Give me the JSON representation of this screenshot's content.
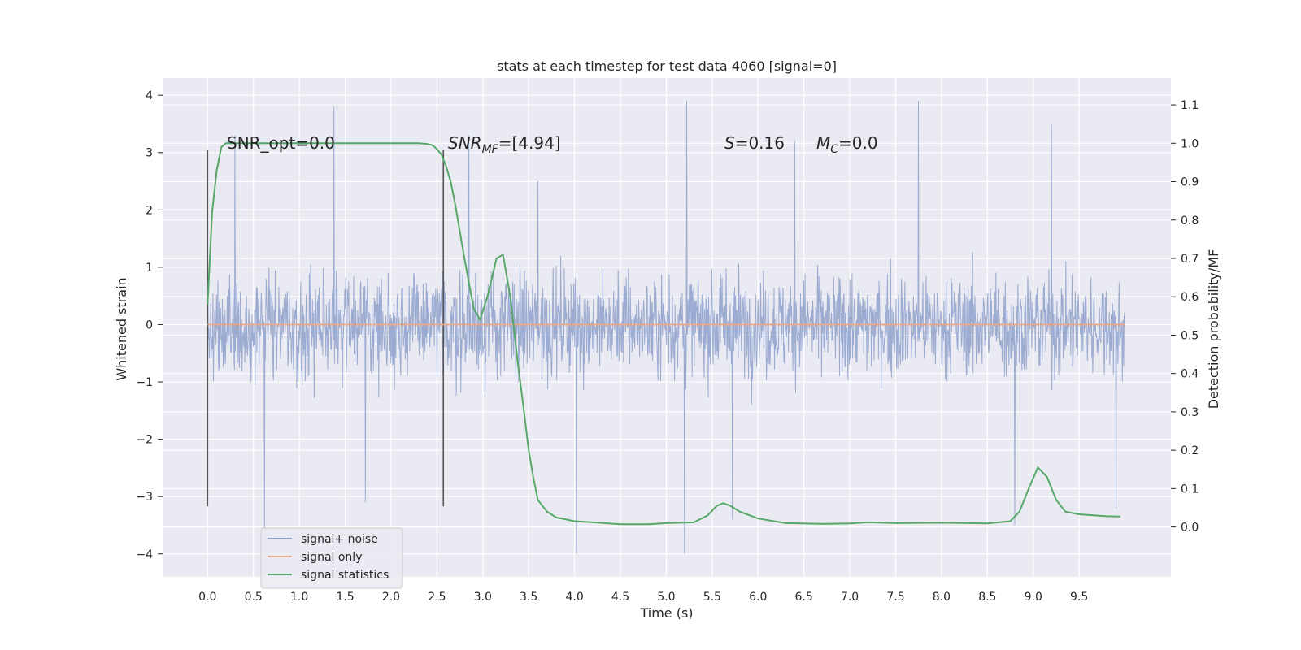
{
  "chart_data": {
    "type": "line",
    "title": "stats at each timestep for test data 4060 [signal=0]",
    "xlabel": "Time (s)",
    "ylabel": "Whitened strain",
    "y2label": "Detection probability/MF",
    "xlim": [
      -0.49,
      10.5
    ],
    "ylim": [
      -4.4,
      4.3
    ],
    "y2lim": [
      -0.13,
      1.17
    ],
    "xticks": [
      "0.0",
      "0.5",
      "1.0",
      "1.5",
      "2.0",
      "2.5",
      "3.0",
      "3.5",
      "4.0",
      "4.5",
      "5.0",
      "5.5",
      "6.0",
      "6.5",
      "7.0",
      "7.5",
      "8.0",
      "8.5",
      "9.0",
      "9.5"
    ],
    "yticks": [
      "4",
      "3",
      "2",
      "1",
      "0",
      "−1",
      "−2",
      "−3",
      "−4"
    ],
    "y2ticks": [
      "1.1",
      "1.0",
      "0.9",
      "0.8",
      "0.7",
      "0.6",
      "0.5",
      "0.4",
      "0.3",
      "0.2",
      "0.1",
      "0.0"
    ],
    "grid": true,
    "legend_position": "lower-left",
    "annotations": {
      "snr_opt": "SNR_opt=0.0",
      "snr_mf_pre": "SNR",
      "snr_mf_sub": "MF",
      "snr_mf_post": "=[4.94]",
      "s_pre": "S",
      "s_post": "=0.16",
      "mc_pre": "M",
      "mc_sub": "C",
      "mc_post": "=0.0"
    },
    "markers_x": [
      0.0,
      2.57
    ],
    "series": [
      {
        "name": "signal+ noise",
        "color": "#8da0cb",
        "axis": "left",
        "x_range": [
          0.0,
          10.0
        ],
        "envelope": "noise roughly within ±2.5 with spikes from about −3.9 to 3.9",
        "peaks": [
          [
            0.3,
            3.3
          ],
          [
            0.62,
            -3.6
          ],
          [
            1.38,
            3.8
          ],
          [
            1.72,
            -3.1
          ],
          [
            2.85,
            3.3
          ],
          [
            3.6,
            2.5
          ],
          [
            4.02,
            -4.0
          ],
          [
            5.22,
            3.9
          ],
          [
            5.2,
            -4.0
          ],
          [
            5.72,
            -3.4
          ],
          [
            6.4,
            3.2
          ],
          [
            7.75,
            3.9
          ],
          [
            8.8,
            -3.5
          ],
          [
            9.2,
            3.5
          ],
          [
            9.9,
            -3.2
          ]
        ]
      },
      {
        "name": "signal only",
        "color": "#e8a88c",
        "axis": "left",
        "x": [
          0.0,
          10.0
        ],
        "y": [
          0.0,
          0.0
        ]
      },
      {
        "name": "signal statistics",
        "color": "#55a868",
        "axis": "right",
        "x": [
          0.0,
          0.05,
          0.1,
          0.15,
          0.2,
          0.5,
          1.0,
          1.5,
          2.0,
          2.3,
          2.4,
          2.45,
          2.5,
          2.55,
          2.6,
          2.65,
          2.7,
          2.8,
          2.9,
          2.97,
          3.05,
          3.15,
          3.22,
          3.3,
          3.38,
          3.45,
          3.5,
          3.55,
          3.6,
          3.7,
          3.8,
          4.0,
          4.2,
          4.5,
          4.8,
          5.0,
          5.3,
          5.45,
          5.55,
          5.62,
          5.7,
          5.8,
          6.0,
          6.3,
          6.7,
          7.0,
          7.2,
          7.5,
          8.0,
          8.5,
          8.75,
          8.85,
          8.95,
          9.05,
          9.15,
          9.25,
          9.35,
          9.5,
          9.8,
          9.95
        ],
        "y": [
          0.58,
          0.82,
          0.93,
          0.99,
          1.0,
          1.0,
          1.0,
          1.0,
          1.0,
          1.0,
          0.998,
          0.995,
          0.985,
          0.97,
          0.94,
          0.9,
          0.84,
          0.7,
          0.57,
          0.54,
          0.6,
          0.7,
          0.71,
          0.6,
          0.43,
          0.3,
          0.2,
          0.13,
          0.07,
          0.04,
          0.025,
          0.015,
          0.012,
          0.007,
          0.007,
          0.01,
          0.012,
          0.03,
          0.055,
          0.062,
          0.055,
          0.04,
          0.022,
          0.01,
          0.008,
          0.009,
          0.012,
          0.01,
          0.011,
          0.009,
          0.015,
          0.04,
          0.1,
          0.155,
          0.13,
          0.07,
          0.04,
          0.033,
          0.028,
          0.027
        ]
      }
    ]
  }
}
